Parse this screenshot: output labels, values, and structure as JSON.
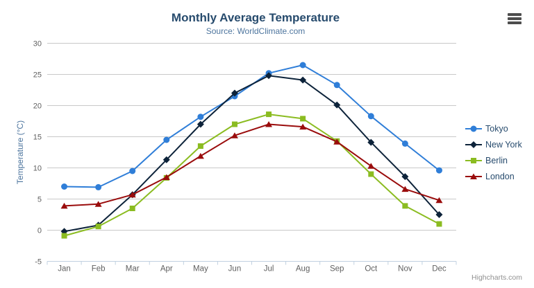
{
  "chart_data": {
    "type": "line",
    "title": "Monthly Average Temperature",
    "subtitle": "Source: WorldClimate.com",
    "xlabel": "",
    "ylabel": "Temperature (°C)",
    "ylim": [
      -5,
      30
    ],
    "yticks": [
      -5,
      0,
      5,
      10,
      15,
      20,
      25,
      30
    ],
    "grid": true,
    "legend_position": "right",
    "categories": [
      "Jan",
      "Feb",
      "Mar",
      "Apr",
      "May",
      "Jun",
      "Jul",
      "Aug",
      "Sep",
      "Oct",
      "Nov",
      "Dec"
    ],
    "series": [
      {
        "name": "Tokyo",
        "color": "#2f7ed8",
        "marker": "circle",
        "values": [
          7.0,
          6.9,
          9.5,
          14.5,
          18.2,
          21.5,
          25.2,
          26.5,
          23.3,
          18.3,
          13.9,
          9.6
        ]
      },
      {
        "name": "New York",
        "color": "#0d233a",
        "marker": "diamond",
        "values": [
          -0.2,
          0.8,
          5.7,
          11.3,
          17.0,
          22.0,
          24.8,
          24.1,
          20.1,
          14.1,
          8.6,
          2.5
        ]
      },
      {
        "name": "Berlin",
        "color": "#8bbc21",
        "marker": "square",
        "values": [
          -0.9,
          0.6,
          3.5,
          8.4,
          13.5,
          17.0,
          18.6,
          17.9,
          14.3,
          9.0,
          3.9,
          1.0
        ]
      },
      {
        "name": "London",
        "color": "#9a0c0c",
        "marker": "triangle",
        "values": [
          3.9,
          4.2,
          5.7,
          8.5,
          11.9,
          15.2,
          17.0,
          16.6,
          14.2,
          10.3,
          6.6,
          4.8
        ]
      }
    ],
    "axis_colors": {
      "gridline": "#c8c8c8",
      "axis_line": "#c0d0e0",
      "tick_label": "#606060",
      "axis_title": "#4d759e",
      "title": "#274b6d",
      "subtitle": "#4d759e"
    }
  },
  "credits": "Highcharts.com",
  "icons": {
    "context_menu": "hamburger-icon"
  }
}
